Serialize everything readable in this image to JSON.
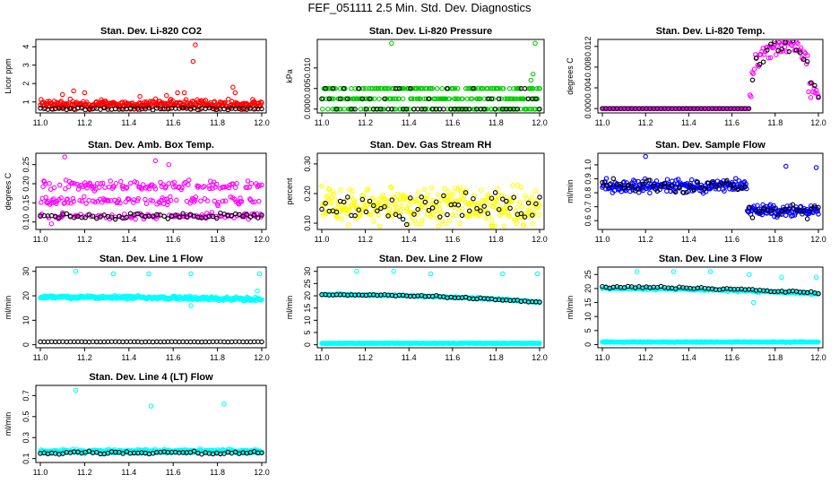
{
  "page": {
    "title": "FEF_051111  2.5 Min. Std. Dev. Diagnostics"
  },
  "chart_data": [
    {
      "type": "scatter",
      "title": "Stan. Dev. Li-820 CO2",
      "ylabel": "Licor ppm",
      "xlim": [
        11.0,
        12.0
      ],
      "xticks": [
        "11.0",
        "11.2",
        "11.4",
        "11.6",
        "11.8",
        "12.0"
      ],
      "ylim": [
        0.5,
        4.3
      ],
      "yticks": [
        {
          "v": 1,
          "label": "1"
        },
        {
          "v": 2,
          "label": "2"
        },
        {
          "v": 3,
          "label": "3"
        },
        {
          "v": 4,
          "label": "4"
        }
      ],
      "series": [
        {
          "name": "Li-820 CO2",
          "color": "#ff0000",
          "seed": 11,
          "base": 0.85,
          "noise": 0.35,
          "min": 0.55,
          "outliers": [
            [
              11.1,
              1.4
            ],
            [
              11.15,
              1.6
            ],
            [
              11.2,
              1.5
            ],
            [
              11.45,
              1.3
            ],
            [
              11.57,
              1.35
            ],
            [
              11.62,
              1.5
            ],
            [
              11.65,
              1.5
            ],
            [
              11.69,
              3.2
            ],
            [
              11.7,
              4.1
            ],
            [
              11.87,
              1.8
            ],
            [
              11.88,
              1.5
            ],
            [
              11.68,
              0.6
            ]
          ]
        },
        {
          "name": "black",
          "color": "#000000",
          "seed": 12,
          "base": 0.62,
          "noise": 0.08,
          "min": 0.55,
          "count": 60,
          "outliers": []
        }
      ]
    },
    {
      "type": "scatter",
      "title": "Stan. Dev. Li-820 Pressure",
      "ylabel": "kPa",
      "xlim": [
        11.0,
        12.0
      ],
      "xticks": [
        "11.0",
        "11.2",
        "11.4",
        "11.6",
        "11.8",
        "12.0"
      ],
      "ylim": [
        -0.0005,
        0.0165
      ],
      "yticks": [
        {
          "v": 0,
          "label": "0.000"
        },
        {
          "v": 0.005,
          "label": "0.005"
        },
        {
          "v": 0.01,
          "label": "0.010"
        }
      ],
      "series": [
        {
          "name": "Pressure",
          "color": "#00cc00",
          "seed": 21,
          "mode": "levels",
          "levels": [
            0,
            0.0025,
            0.005
          ],
          "outliers": [
            [
              11.32,
              0.016
            ],
            [
              11.98,
              0.016
            ],
            [
              11.97,
              0.0085
            ],
            [
              11.96,
              0.007
            ]
          ]
        },
        {
          "name": "black",
          "color": "#000000",
          "seed": 22,
          "mode": "levels",
          "levels": [
            0,
            0,
            0.0025,
            0.005
          ],
          "count": 60,
          "outliers": []
        }
      ]
    },
    {
      "type": "scatter",
      "title": "Stan. Dev. Li-820 Temp.",
      "ylabel": "degrees C",
      "xlim": [
        11.0,
        12.0
      ],
      "xticks": [
        "11.0",
        "11.2",
        "11.4",
        "11.6",
        "11.8",
        "12.0"
      ],
      "ylim": [
        -0.0005,
        0.013
      ],
      "yticks": [
        {
          "v": 0,
          "label": "0.000"
        },
        {
          "v": 0.004,
          "label": "0.004"
        },
        {
          "v": 0.008,
          "label": "0.008"
        },
        {
          "v": 0.012,
          "label": "0.012"
        }
      ],
      "series": [
        {
          "name": "Temp",
          "color": "#ff00ff",
          "seed": 31,
          "mode": "temp",
          "outliers": []
        },
        {
          "name": "black",
          "color": "#000000",
          "seed": 32,
          "mode": "temp",
          "count": 60,
          "outliers": []
        }
      ]
    },
    {
      "type": "scatter",
      "title": "Stan. Dev. Amb. Box Temp.",
      "ylabel": "degrees C",
      "xlim": [
        11.0,
        12.0
      ],
      "xticks": [
        "11.0",
        "11.2",
        "11.4",
        "11.6",
        "11.8",
        "12.0"
      ],
      "ylim": [
        0.085,
        0.275
      ],
      "yticks": [
        {
          "v": 0.1,
          "label": "0.10"
        },
        {
          "v": 0.15,
          "label": "0.15"
        },
        {
          "v": 0.2,
          "label": "0.20"
        },
        {
          "v": 0.25,
          "label": "0.25"
        }
      ],
      "series": [
        {
          "name": "Box Temp",
          "color": "#ff00ff",
          "seed": 41,
          "mode": "bands",
          "bands": [
            [
              0.115,
              0.012
            ],
            [
              0.155,
              0.015
            ],
            [
              0.195,
              0.02
            ]
          ],
          "outliers": [
            [
              11.11,
              0.27
            ],
            [
              11.52,
              0.26
            ],
            [
              11.05,
              0.095
            ],
            [
              11.58,
              0.25
            ]
          ]
        },
        {
          "name": "black",
          "color": "#000000",
          "seed": 42,
          "base": 0.115,
          "noise": 0.01,
          "count": 60,
          "outliers": []
        }
      ]
    },
    {
      "type": "scatter",
      "title": "Stan. Dev. Gas Stream RH",
      "ylabel": "percent",
      "xlim": [
        11.0,
        12.0
      ],
      "xticks": [
        "11.0",
        "11.2",
        "11.4",
        "11.6",
        "11.8",
        "12.0"
      ],
      "ylim": [
        0.085,
        0.33
      ],
      "yticks": [
        {
          "v": 0.1,
          "label": "0.10"
        },
        {
          "v": 0.2,
          "label": "0.20"
        },
        {
          "v": 0.3,
          "label": "0.30"
        }
      ],
      "series": [
        {
          "name": "RH",
          "color": "#ffff00",
          "seed": 51,
          "base": 0.16,
          "noise": 0.1,
          "min": 0.09,
          "max": 0.32,
          "outliers": []
        },
        {
          "name": "black",
          "color": "#000000",
          "seed": 52,
          "base": 0.16,
          "noise": 0.08,
          "min": 0.095,
          "max": 0.26,
          "count": 60,
          "outliers": []
        }
      ]
    },
    {
      "type": "scatter",
      "title": "Stan. Dev. Sample Flow",
      "ylabel": "ml/min",
      "xlim": [
        11.0,
        12.0
      ],
      "xticks": [
        "11.0",
        "11.2",
        "11.4",
        "11.6",
        "11.8",
        "12.0"
      ],
      "ylim": [
        0.55,
        1.07
      ],
      "yticks": [
        {
          "v": 0.6,
          "label": "0.6"
        },
        {
          "v": 0.7,
          "label": "0.7"
        },
        {
          "v": 0.8,
          "label": "0.8"
        },
        {
          "v": 0.9,
          "label": "0.9"
        },
        {
          "v": 1.0,
          "label": "1.0"
        }
      ],
      "series": [
        {
          "name": "Sample Flow",
          "color": "#0000ff",
          "seed": 61,
          "mode": "sflow",
          "outliers": [
            [
              11.2,
              1.06
            ],
            [
              11.85,
              0.99
            ],
            [
              11.99,
              0.98
            ]
          ]
        },
        {
          "name": "black",
          "color": "#000000",
          "seed": 62,
          "mode": "sflow",
          "count": 60,
          "outliers": []
        }
      ]
    },
    {
      "type": "scatter",
      "title": "Stan. Dev. Line 1 Flow",
      "ylabel": "ml/min",
      "xlim": [
        11.0,
        12.0
      ],
      "xticks": [
        "11.0",
        "11.2",
        "11.4",
        "11.6",
        "11.8",
        "12.0"
      ],
      "ylim": [
        -0.5,
        31
      ],
      "yticks": [
        {
          "v": 0,
          "label": "0"
        },
        {
          "v": 10,
          "label": "10"
        },
        {
          "v": 20,
          "label": "20"
        },
        {
          "v": 30,
          "label": "30"
        }
      ],
      "series": [
        {
          "name": "Line 1",
          "color": "#00ffff",
          "seed": 71,
          "base": 19.5,
          "noise": 1.0,
          "slope": -1.0,
          "outliers": [
            [
              11.16,
              30
            ],
            [
              11.33,
              29
            ],
            [
              11.49,
              29
            ],
            [
              11.68,
              29
            ],
            [
              11.99,
              29
            ],
            [
              11.98,
              22
            ],
            [
              11.68,
              16
            ]
          ]
        },
        {
          "name": "black",
          "color": "#000000",
          "seed": 72,
          "base": 1.2,
          "noise": 0.1,
          "count": 60,
          "outliers": []
        }
      ]
    },
    {
      "type": "scatter",
      "title": "Stan. Dev. Line 2 Flow",
      "ylabel": "ml/min",
      "xlim": [
        11.0,
        12.0
      ],
      "xticks": [
        "11.0",
        "11.2",
        "11.4",
        "11.6",
        "11.8",
        "12.0"
      ],
      "ylim": [
        -0.5,
        31
      ],
      "yticks": [
        {
          "v": 0,
          "label": "0"
        },
        {
          "v": 5,
          "label": "5"
        },
        {
          "v": 10,
          "label": "10"
        },
        {
          "v": 15,
          "label": "15"
        },
        {
          "v": 20,
          "label": "20"
        },
        {
          "v": 25,
          "label": "25"
        },
        {
          "v": 30,
          "label": "30"
        }
      ],
      "series": [
        {
          "name": "Line 2 low",
          "color": "#00ffff",
          "seed": 81,
          "base": 0.6,
          "noise": 0.15,
          "outliers": []
        },
        {
          "name": "Line 2 high",
          "color": "#00ffff",
          "seed": 82,
          "base": 20.5,
          "noise": 0.5,
          "slope": -3.0,
          "count": 180,
          "outliers": [
            [
              11.16,
              30
            ],
            [
              11.33,
              30
            ],
            [
              11.5,
              29
            ],
            [
              11.83,
              29
            ],
            [
              11.99,
              29
            ]
          ]
        },
        {
          "name": "black",
          "color": "#000000",
          "seed": 83,
          "base": 20.5,
          "noise": 0.5,
          "slope": -3.0,
          "count": 60,
          "outliers": []
        }
      ]
    },
    {
      "type": "scatter",
      "title": "Stan. Dev. Line 3 Flow",
      "ylabel": "ml/min",
      "xlim": [
        11.0,
        12.0
      ],
      "xticks": [
        "11.0",
        "11.2",
        "11.4",
        "11.6",
        "11.8",
        "12.0"
      ],
      "ylim": [
        -0.5,
        27
      ],
      "yticks": [
        {
          "v": 0,
          "label": "0"
        },
        {
          "v": 5,
          "label": "5"
        },
        {
          "v": 10,
          "label": "10"
        },
        {
          "v": 15,
          "label": "15"
        },
        {
          "v": 20,
          "label": "20"
        },
        {
          "v": 25,
          "label": "25"
        }
      ],
      "series": [
        {
          "name": "Line 3 low",
          "color": "#00ffff",
          "seed": 91,
          "base": 0.9,
          "noise": 0.2,
          "outliers": []
        },
        {
          "name": "Line 3 high",
          "color": "#00ffff",
          "seed": 92,
          "base": 20.0,
          "noise": 0.5,
          "slope": -2.0,
          "count": 180,
          "outliers": [
            [
              11.16,
              26
            ],
            [
              11.33,
              26
            ],
            [
              11.5,
              26
            ],
            [
              11.68,
              25
            ],
            [
              11.83,
              24
            ],
            [
              11.99,
              24
            ],
            [
              11.7,
              15
            ]
          ]
        },
        {
          "name": "black",
          "color": "#000000",
          "seed": 93,
          "base": 20.5,
          "noise": 0.5,
          "slope": -2.0,
          "count": 60,
          "outliers": []
        }
      ]
    },
    {
      "type": "scatter",
      "title": "Stan. Dev. Line 4 (LT) Flow",
      "ylabel": "ml/min",
      "xlim": [
        11.0,
        12.0
      ],
      "xticks": [
        "11.0",
        "11.2",
        "11.4",
        "11.6",
        "11.8",
        "12.0"
      ],
      "ylim": [
        0.08,
        0.78
      ],
      "yticks": [
        {
          "v": 0.1,
          "label": "0.1"
        },
        {
          "v": 0.3,
          "label": "0.3"
        },
        {
          "v": 0.5,
          "label": "0.5"
        },
        {
          "v": 0.7,
          "label": "0.7"
        }
      ],
      "series": [
        {
          "name": "Line 4",
          "color": "#00ffff",
          "seed": 101,
          "base": 0.17,
          "noise": 0.025,
          "outliers": [
            [
              11.16,
              0.75
            ],
            [
              11.5,
              0.6
            ],
            [
              11.83,
              0.62
            ]
          ]
        },
        {
          "name": "black",
          "color": "#000000",
          "seed": 102,
          "base": 0.155,
          "noise": 0.02,
          "count": 60,
          "outliers": []
        }
      ]
    }
  ]
}
